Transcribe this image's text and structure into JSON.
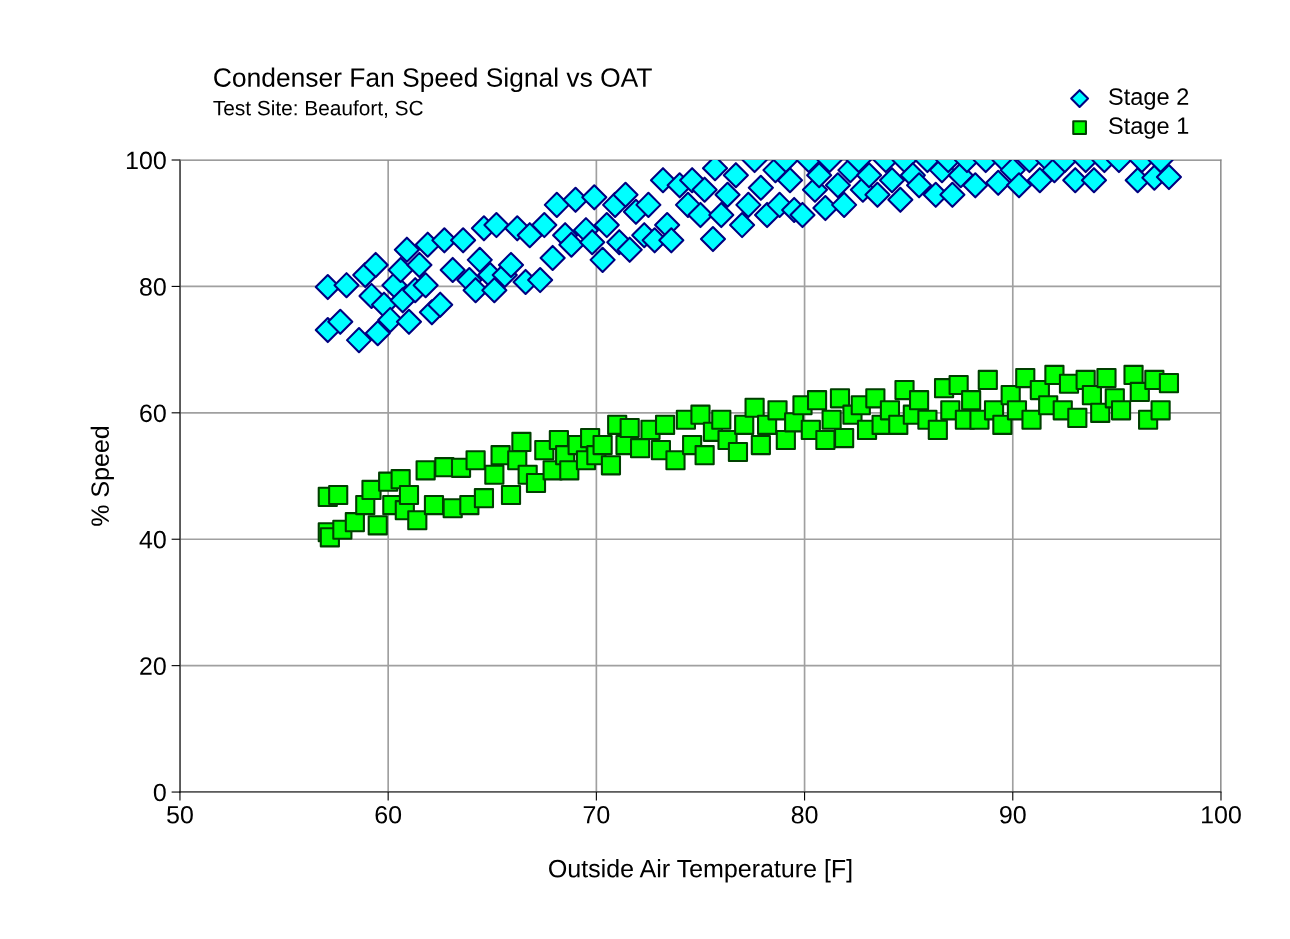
{
  "chart_data": {
    "type": "scatter",
    "title": "Condenser Fan Speed Signal vs OAT",
    "subtitle": "Test Site: Beaufort, SC",
    "xlabel": "Outside Air Temperature [F]",
    "ylabel": "% Speed",
    "xlim": [
      50,
      100
    ],
    "xticks": [
      50,
      60,
      70,
      80,
      90,
      100
    ],
    "ylim": [
      0,
      100
    ],
    "yticks": [
      0,
      20,
      40,
      60,
      80,
      100
    ],
    "grid": true,
    "legend": "top right",
    "series": [
      {
        "name": "Stage 2",
        "color": "#00ffff",
        "marker": "diamond",
        "x": [
          57.1,
          57.1,
          57.7,
          58.0,
          58.6,
          58.9,
          59.2,
          59.4,
          59.5,
          59.8,
          60.1,
          60.3,
          60.6,
          60.7,
          60.9,
          61.0,
          61.3,
          61.5,
          61.8,
          61.9,
          62.1,
          62.5,
          62.7,
          63.1,
          63.6,
          63.9,
          64.2,
          64.4,
          64.6,
          64.9,
          65.1,
          65.2,
          65.6,
          65.9,
          66.2,
          66.6,
          66.8,
          67.3,
          67.5,
          67.9,
          68.1,
          68.5,
          68.8,
          69.0,
          69.5,
          69.8,
          69.9,
          70.3,
          70.5,
          70.9,
          71.1,
          71.4,
          71.6,
          71.9,
          72.3,
          72.5,
          72.8,
          73.2,
          73.4,
          73.6,
          74.0,
          74.4,
          74.6,
          75.0,
          75.2,
          75.6,
          75.7,
          76.0,
          76.3,
          76.7,
          77.0,
          77.3,
          77.6,
          77.9,
          78.2,
          78.6,
          78.8,
          79.1,
          79.3,
          79.5,
          79.9,
          80.2,
          80.5,
          80.7,
          81.0,
          81.2,
          81.6,
          81.9,
          82.2,
          82.6,
          82.8,
          83.1,
          83.5,
          83.9,
          84.2,
          84.6,
          84.8,
          85.2,
          85.5,
          85.9,
          86.3,
          86.6,
          86.9,
          87.1,
          87.5,
          87.8,
          88.2,
          88.7,
          89.3,
          89.6,
          90.0,
          90.3,
          90.8,
          91.3,
          91.7,
          92.0,
          92.5,
          93.0,
          93.5,
          93.9,
          94.4,
          95.1,
          96.0,
          96.2,
          96.8,
          97.1,
          97.5
        ],
        "values": [
          79.9,
          73.1,
          74.4,
          80.2,
          71.5,
          81.8,
          78.5,
          83.4,
          72.6,
          77.1,
          74.7,
          80.2,
          82.6,
          77.8,
          85.8,
          74.4,
          79.4,
          83.4,
          80.2,
          86.6,
          75.9,
          77.1,
          87.3,
          82.6,
          87.3,
          81.0,
          79.4,
          84.2,
          89.2,
          81.8,
          79.4,
          89.7,
          81.8,
          83.4,
          89.2,
          80.7,
          88.1,
          81.0,
          89.7,
          84.5,
          92.9,
          88.1,
          86.6,
          93.7,
          88.9,
          87.0,
          94.1,
          84.2,
          89.7,
          92.9,
          87.0,
          94.5,
          85.8,
          91.8,
          88.1,
          92.9,
          87.3,
          96.8,
          89.7,
          87.3,
          96.0,
          92.9,
          96.8,
          91.3,
          95.3,
          87.5,
          98.7,
          91.3,
          94.5,
          97.6,
          89.7,
          92.9,
          100,
          95.6,
          91.3,
          98.4,
          92.9,
          100,
          96.8,
          92.1,
          91.3,
          100,
          95.3,
          97.6,
          92.4,
          100,
          96.0,
          92.9,
          98.4,
          100,
          95.3,
          97.6,
          94.5,
          100,
          96.8,
          93.7,
          100,
          97.6,
          96.0,
          100,
          94.5,
          98.4,
          100,
          94.5,
          97.6,
          100,
          96.0,
          100,
          96.4,
          100,
          98.4,
          96.0,
          100,
          96.8,
          100,
          98.4,
          100,
          96.8,
          100,
          96.8,
          100,
          100,
          96.8,
          100,
          97.2,
          100,
          97.3
        ]
      },
      {
        "name": "Stage 1",
        "color": "#00ff00",
        "marker": "square",
        "x": [
          57.1,
          57.1,
          57.2,
          57.6,
          57.8,
          58.4,
          58.9,
          59.2,
          59.5,
          60.0,
          60.2,
          60.6,
          60.8,
          61.0,
          61.4,
          61.8,
          62.2,
          62.7,
          63.1,
          63.5,
          63.9,
          64.2,
          64.6,
          65.1,
          65.4,
          65.9,
          66.2,
          66.4,
          66.7,
          67.1,
          67.5,
          67.9,
          68.2,
          68.5,
          68.7,
          69.1,
          69.5,
          69.7,
          70.0,
          70.3,
          70.7,
          71.0,
          71.4,
          71.6,
          72.1,
          72.6,
          73.1,
          73.3,
          73.8,
          74.3,
          74.6,
          75.0,
          75.2,
          75.6,
          76.0,
          76.3,
          76.8,
          77.1,
          77.6,
          77.9,
          78.2,
          78.7,
          79.1,
          79.5,
          79.9,
          80.3,
          80.6,
          81.0,
          81.3,
          81.7,
          81.9,
          82.3,
          82.7,
          83.0,
          83.4,
          83.7,
          84.1,
          84.5,
          84.8,
          85.2,
          85.5,
          85.9,
          86.4,
          86.7,
          87.0,
          87.4,
          87.7,
          88.0,
          88.4,
          88.8,
          89.1,
          89.5,
          89.9,
          90.2,
          90.6,
          90.9,
          91.3,
          91.7,
          92.0,
          92.4,
          92.7,
          93.1,
          93.5,
          93.8,
          94.2,
          94.5,
          94.9,
          95.2,
          95.8,
          96.1,
          96.5,
          96.8,
          97.1,
          97.5
        ],
        "values": [
          46.7,
          41.1,
          40.3,
          47.0,
          41.5,
          42.7,
          45.4,
          47.8,
          42.2,
          49.1,
          45.4,
          49.5,
          44.6,
          47.0,
          43.0,
          50.9,
          45.4,
          51.4,
          44.9,
          51.3,
          45.4,
          52.5,
          46.5,
          50.2,
          53.3,
          47.0,
          52.5,
          55.4,
          50.2,
          48.9,
          54.1,
          50.9,
          55.7,
          53.3,
          50.9,
          54.9,
          52.5,
          56.0,
          53.3,
          54.9,
          51.7,
          58.1,
          54.9,
          57.6,
          54.4,
          57.3,
          54.1,
          58.1,
          52.5,
          58.9,
          54.9,
          59.7,
          53.3,
          57.0,
          58.9,
          55.7,
          53.8,
          58.1,
          60.8,
          54.9,
          58.1,
          60.4,
          55.7,
          58.5,
          61.2,
          57.3,
          62.0,
          55.7,
          58.9,
          62.3,
          56.0,
          59.7,
          61.2,
          57.3,
          62.3,
          58.1,
          60.4,
          58.1,
          63.6,
          59.7,
          62.0,
          58.9,
          57.3,
          63.9,
          60.4,
          64.4,
          58.9,
          62.0,
          58.9,
          65.2,
          60.4,
          58.1,
          62.8,
          60.4,
          65.5,
          58.9,
          63.6,
          61.2,
          66.0,
          60.4,
          64.6,
          59.2,
          65.2,
          62.8,
          60.0,
          65.5,
          62.3,
          60.4,
          66.0,
          63.3,
          58.9,
          65.2,
          60.4,
          64.7
        ]
      }
    ]
  }
}
